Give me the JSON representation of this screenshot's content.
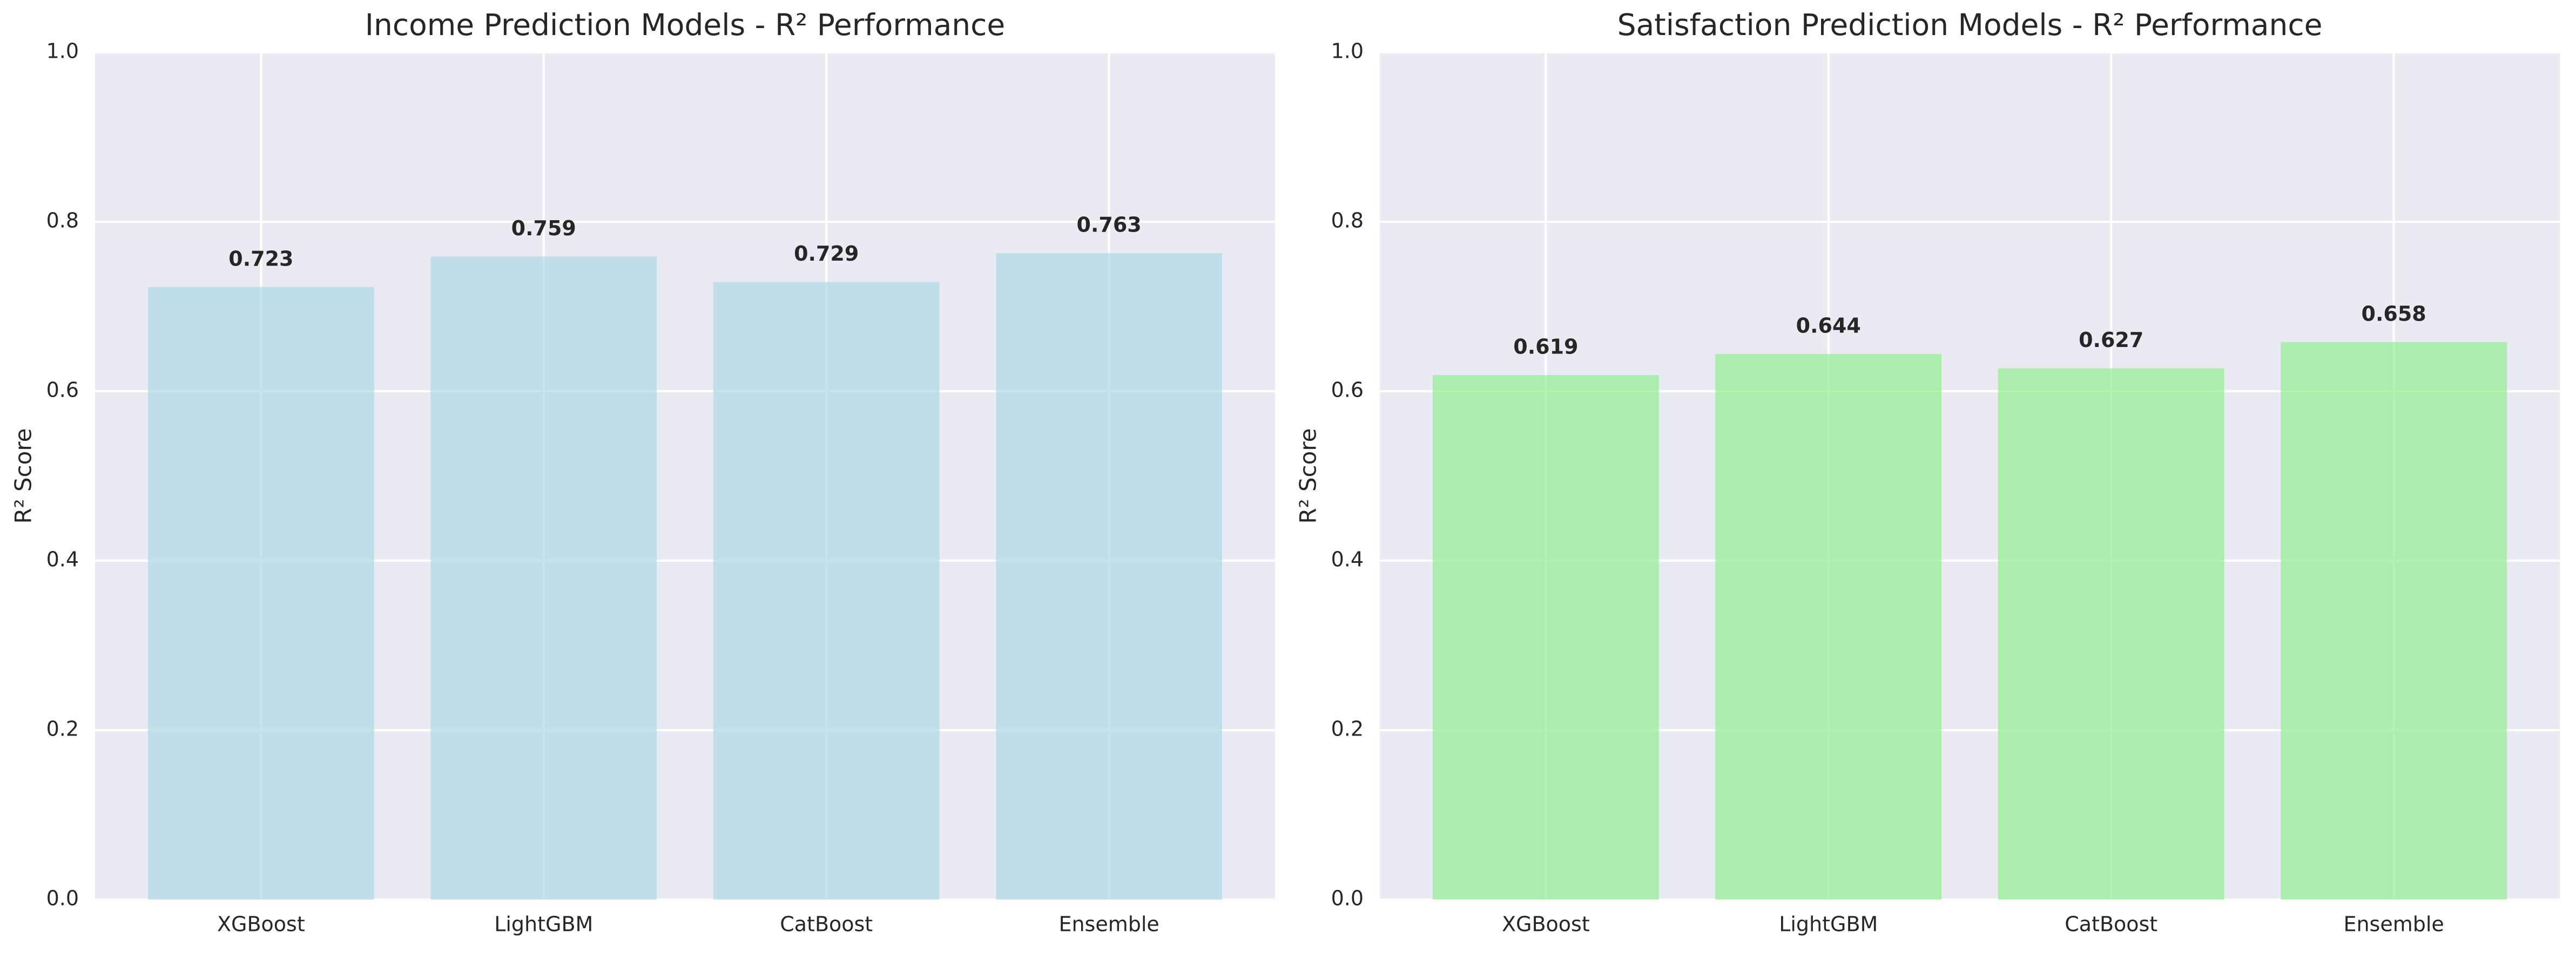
{
  "chart_data": [
    {
      "type": "bar",
      "title": "Income Prediction Models - R² Performance",
      "y_label": "R² Score",
      "categories": [
        "XGBoost",
        "LightGBM",
        "CatBoost",
        "Ensemble"
      ],
      "values": [
        0.723,
        0.759,
        0.729,
        0.763
      ],
      "color": "#add8e6",
      "ylim": [
        0,
        1
      ],
      "yticks": [
        {
          "value": 0,
          "label": "0.0"
        },
        0.2,
        0.4,
        0.6,
        0.8,
        {
          "value": 1,
          "label": "1.0"
        }
      ],
      "grid": true
    },
    {
      "type": "bar",
      "title": "Satisfaction Prediction Models - R² Performance",
      "y_label": "R² Score",
      "categories": [
        "XGBoost",
        "LightGBM",
        "CatBoost",
        "Ensemble"
      ],
      "values": [
        0.619,
        0.644,
        0.627,
        0.658
      ],
      "color": "#90ee90",
      "ylim": [
        0,
        1
      ],
      "yticks": [
        {
          "value": 0,
          "label": "0.0"
        },
        0.2,
        0.4,
        0.6,
        0.8,
        {
          "value": 1,
          "label": "1.0"
        }
      ],
      "grid": true
    }
  ]
}
